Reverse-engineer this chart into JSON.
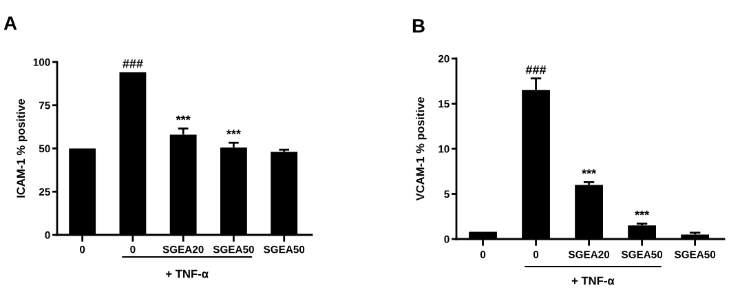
{
  "chart_data": [
    {
      "type": "bar",
      "title": "A",
      "ylabel": "ICAM-1 % positive",
      "categories": [
        "0",
        "0",
        "SGEA20",
        "SGEA50",
        "SGEA50"
      ],
      "values": [
        50,
        94,
        58,
        50.5,
        48
      ],
      "errors": [
        null,
        null,
        [
          58,
          61.5
        ],
        [
          50.5,
          53.3
        ],
        [
          48,
          49.3
        ]
      ],
      "color": "#000000",
      "ylim": [
        0,
        100
      ],
      "yticks": [
        0,
        25,
        50,
        75,
        100
      ],
      "value_labels": [
        null,
        "###",
        "***",
        "***",
        null
      ],
      "annotations": [
        "+ TNF-α"
      ]
    },
    {
      "type": "bar",
      "title": "B",
      "ylabel": "VCAM-1 % positive",
      "categories": [
        "0",
        "0",
        "SGEA20",
        "SGEA50",
        "SGEA50"
      ],
      "values": [
        0.8,
        16.5,
        6.0,
        1.5,
        0.5
      ],
      "errors": [
        null,
        [
          16.5,
          17.8
        ],
        [
          6.0,
          6.3
        ],
        [
          1.5,
          1.7
        ],
        [
          0.5,
          0.7
        ]
      ],
      "color": "#000000",
      "ylim": [
        0,
        20
      ],
      "yticks": [
        0,
        5,
        10,
        15,
        20
      ],
      "value_labels": [
        null,
        "###",
        "***",
        "***",
        null
      ],
      "annotations": [
        "+ TNF-α"
      ]
    }
  ]
}
